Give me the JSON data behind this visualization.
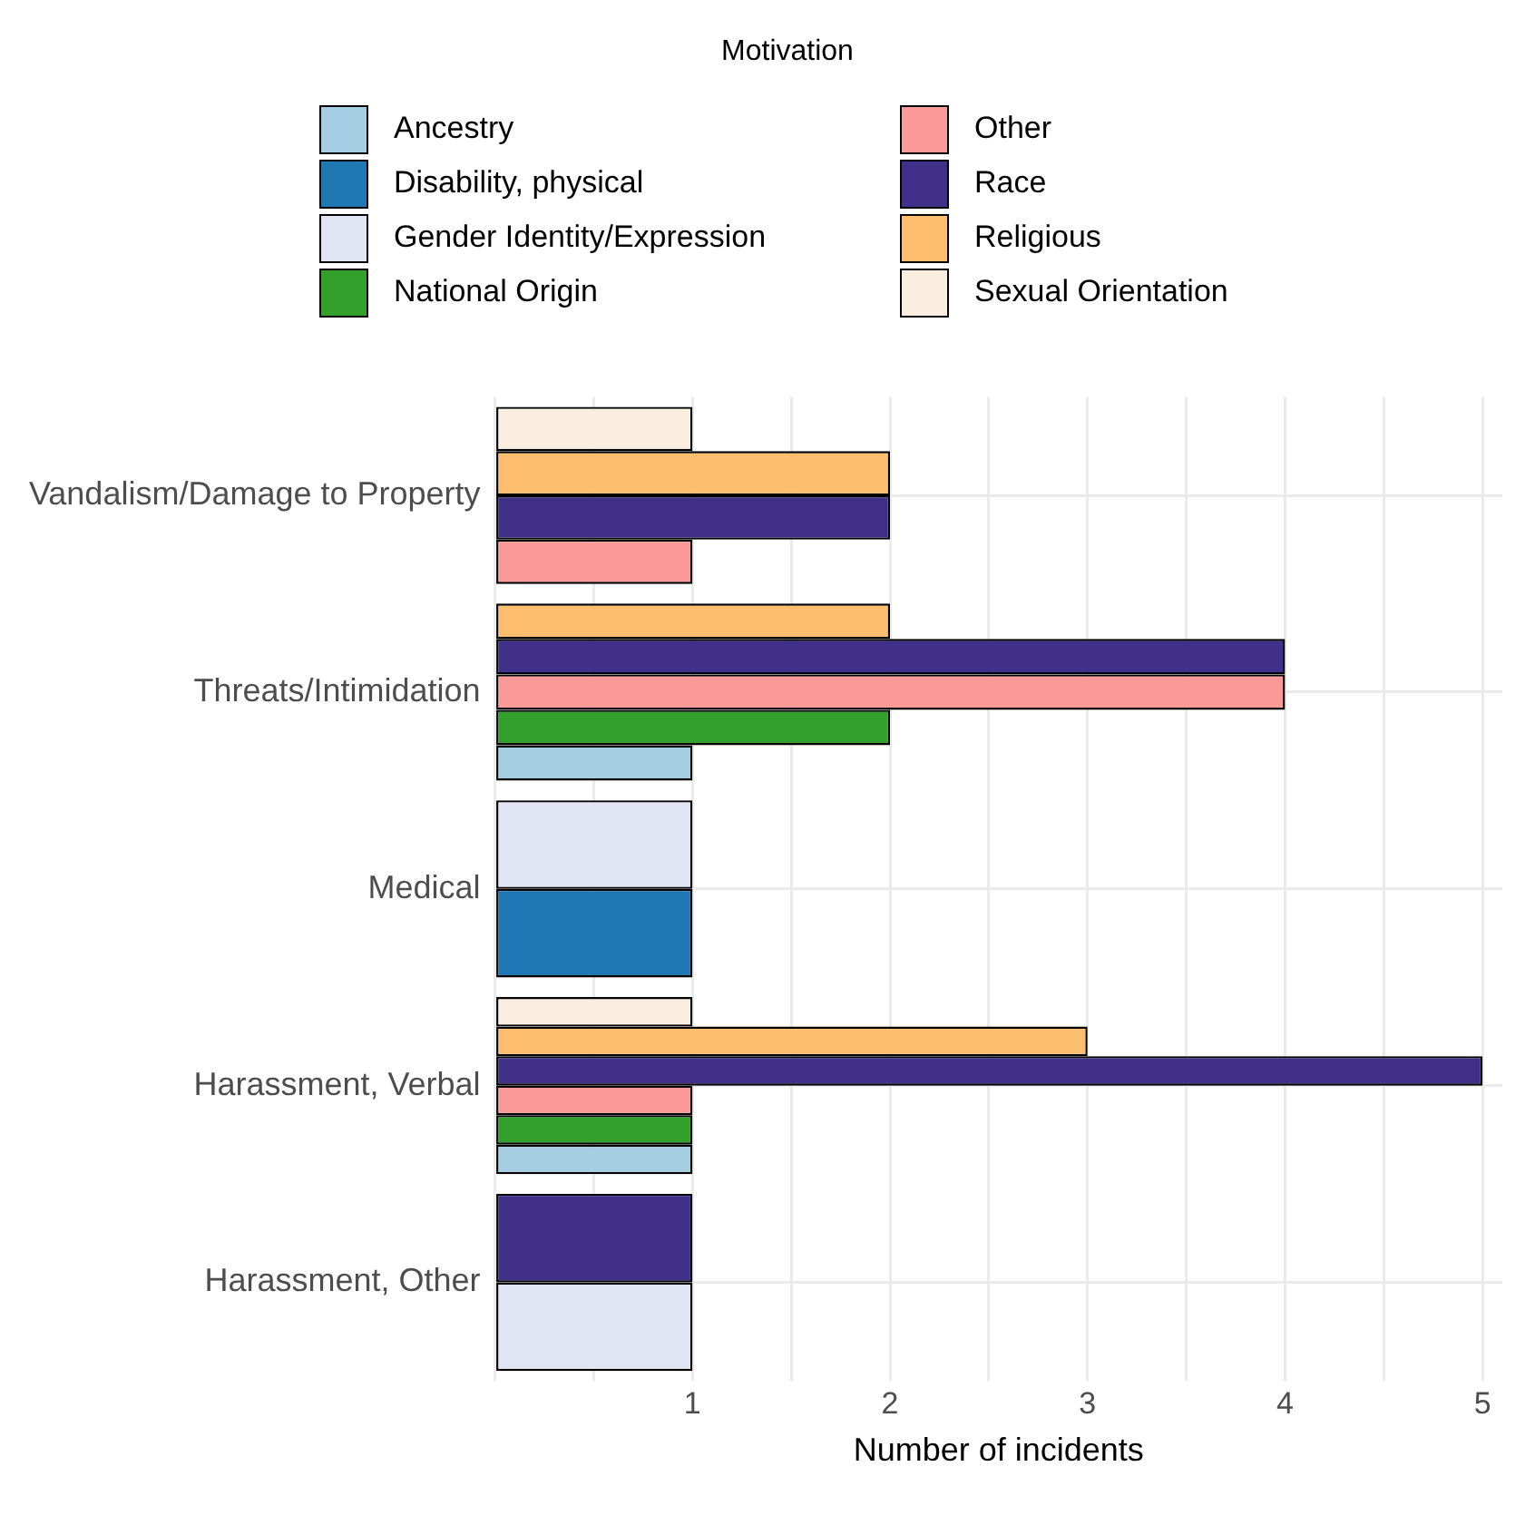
{
  "chart_data": {
    "type": "bar",
    "orientation": "horizontal",
    "legend_title": "Motivation",
    "legend": "top",
    "grid": true,
    "xlabel": "Number of incidents",
    "categories": [
      "Vandalism/Damage to Property",
      "Threats/Intimidation",
      "Medical",
      "Harassment, Verbal",
      "Harassment, Other"
    ],
    "xlim": [
      0,
      5.1
    ],
    "xticks": [
      {
        "value": 0,
        "label": null
      },
      {
        "value": 0.5,
        "label": null
      },
      1,
      {
        "value": 1.5,
        "label": null
      },
      2,
      {
        "value": 2.5,
        "label": null
      },
      3,
      {
        "value": 3.5,
        "label": null
      },
      4,
      {
        "value": 4.5,
        "label": null
      },
      5
    ],
    "series": [
      {
        "name": "Ancestry",
        "color": "#a6cee3",
        "values": [
          null,
          1,
          null,
          1,
          null
        ]
      },
      {
        "name": "Disability, physical",
        "color": "#1f78b4",
        "values": [
          null,
          null,
          1,
          null,
          null
        ]
      },
      {
        "name": "Gender Identity/Expression",
        "color": "#e1e4f3",
        "values": [
          null,
          null,
          1,
          null,
          1
        ]
      },
      {
        "name": "National Origin",
        "color": "#33a02c",
        "values": [
          null,
          2,
          null,
          1,
          null
        ]
      },
      {
        "name": "Other",
        "color": "#fb9a99",
        "values": [
          1,
          4,
          null,
          1,
          null
        ]
      },
      {
        "name": "Race",
        "color": "#41308a",
        "values": [
          2,
          4,
          null,
          5,
          1
        ]
      },
      {
        "name": "Religious",
        "color": "#fdbf6f",
        "values": [
          2,
          2,
          null,
          3,
          null
        ]
      },
      {
        "name": "Sexual Orientation",
        "color": "#faeee0",
        "values": [
          1,
          null,
          null,
          1,
          null
        ]
      }
    ]
  }
}
